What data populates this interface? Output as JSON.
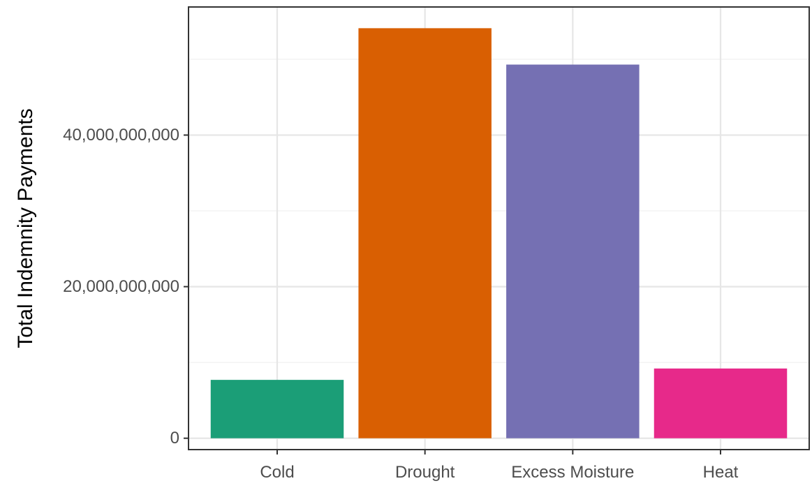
{
  "chart_data": {
    "type": "bar",
    "title": "",
    "xlabel": "",
    "ylabel": "Total Indemnity Payments",
    "categories": [
      "Cold",
      "Drought",
      "Excess Moisture",
      "Heat"
    ],
    "values": [
      7700000000,
      54100000000,
      49300000000,
      9200000000
    ],
    "colors": [
      "#1b9e77",
      "#d95f02",
      "#7570b3",
      "#e7298a"
    ],
    "ylim": [
      -1500000000,
      56900000000
    ],
    "yticks": [
      0,
      20000000000,
      40000000000
    ],
    "ytick_labels": [
      "0",
      "20,000,000,000",
      "40,000,000,000"
    ],
    "grid": true,
    "legend": "none"
  }
}
